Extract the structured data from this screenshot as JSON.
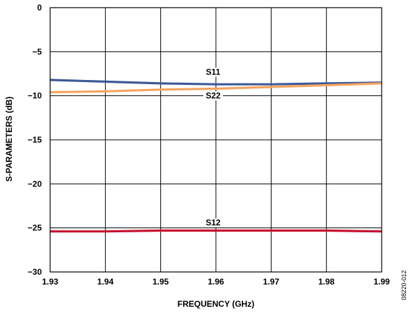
{
  "chart_data": {
    "type": "line",
    "xlabel": "FREQUENCY (GHz)",
    "ylabel": "S-PARAMETERS (dB)",
    "xlim": [
      1.93,
      1.99
    ],
    "ylim": [
      -30,
      0
    ],
    "x_ticks": [
      "1.93",
      "1.94",
      "1.95",
      "1.96",
      "1.97",
      "1.98",
      "1.99"
    ],
    "y_ticks": [
      "0",
      "−5",
      "−10",
      "−15",
      "−20",
      "−25",
      "−30"
    ],
    "grid": true,
    "series": [
      {
        "name": "S11",
        "color": "#3d5a99",
        "x": [
          1.93,
          1.94,
          1.95,
          1.96,
          1.97,
          1.98,
          1.99
        ],
        "y": [
          -8.2,
          -8.4,
          -8.6,
          -8.7,
          -8.7,
          -8.6,
          -8.5
        ]
      },
      {
        "name": "S22",
        "color": "#f4a460",
        "x": [
          1.93,
          1.94,
          1.95,
          1.96,
          1.97,
          1.98,
          1.99
        ],
        "y": [
          -9.6,
          -9.5,
          -9.3,
          -9.2,
          -9.0,
          -8.8,
          -8.6
        ]
      },
      {
        "name": "S12",
        "color": "#c8102e",
        "x": [
          1.93,
          1.94,
          1.95,
          1.96,
          1.97,
          1.98,
          1.99
        ],
        "y": [
          -25.4,
          -25.4,
          -25.3,
          -25.3,
          -25.3,
          -25.3,
          -25.4
        ]
      }
    ],
    "annotations": [
      {
        "text": "S11",
        "x": 1.9595,
        "y": -7.6
      },
      {
        "text": "S22",
        "x": 1.9595,
        "y": -10.3
      },
      {
        "text": "S12",
        "x": 1.9595,
        "y": -24.7
      }
    ],
    "figure_id": "08220-012"
  }
}
